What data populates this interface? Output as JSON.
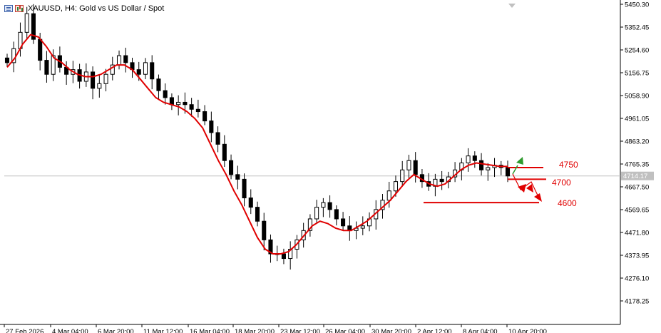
{
  "header": {
    "title": "XAUUSD, H4:  Gold vs US Dollar / Spot",
    "icons": [
      "list-icon",
      "bars-chart-icon"
    ]
  },
  "colors": {
    "up_candle": "#000000",
    "down_candle": "#000000",
    "ma_line": "#e00000",
    "annotation": "#e00000",
    "green_arrow": "#2e9b2e",
    "current_price_line": "#c0c0c0",
    "price_badge_bg": "#c0c0c0",
    "price_badge_text": "#ffffff"
  },
  "chart_data": {
    "type": "candlestick",
    "symbol": "XAUUSD",
    "timeframe": "H4",
    "title": "XAUUSD, H4:  Gold vs US Dollar / Spot",
    "ylim": [
      4100,
      5460
    ],
    "y_ticks": [
      "5450.30",
      "5352.45",
      "5254.60",
      "5156.75",
      "5058.90",
      "4961.05",
      "4863.20",
      "4765.35",
      "4667.50",
      "4569.65",
      "4471.80",
      "4373.95",
      "4276.10",
      "4178.25"
    ],
    "x_ticks": [
      "27 Feb 2026",
      "4 Mar 04:00",
      "6 Mar 20:00",
      "11 Mar 12:00",
      "16 Mar 04:00",
      "18 Mar 20:00",
      "23 Mar 12:00",
      "26 Mar 04:00",
      "30 Mar 20:00",
      "2 Apr 12:00",
      "8 Apr 04:00",
      "10 Apr 20:00"
    ],
    "current_price": 4714.17,
    "current_price_label": "4714.17",
    "grid": false,
    "close_series_approx": [
      5200,
      5260,
      5330,
      5410,
      5300,
      5210,
      5150,
      5230,
      5180,
      5150,
      5170,
      5120,
      5160,
      5090,
      5110,
      5150,
      5190,
      5230,
      5200,
      5170,
      5150,
      5200,
      5130,
      5080,
      5050,
      5020,
      5030,
      5020,
      5000,
      4990,
      4950,
      4900,
      4850,
      4780,
      4720,
      4700,
      4620,
      4580,
      4520,
      4440,
      4380,
      4380,
      4360,
      4400,
      4440,
      4480,
      4530,
      4580,
      4600,
      4570,
      4530,
      4500,
      4480,
      4490,
      4500,
      4530,
      4570,
      4610,
      4650,
      4690,
      4740,
      4780,
      4720,
      4690,
      4670,
      4700,
      4690,
      4710,
      4740,
      4770,
      4800,
      4780,
      4740,
      4750,
      4760,
      4750,
      4714
    ],
    "moving_average": {
      "name": "",
      "values": [
        5180,
        5220,
        5280,
        5320,
        5310,
        5270,
        5220,
        5200,
        5170,
        5150,
        5140,
        5140,
        5150,
        5170,
        5190,
        5190,
        5170,
        5130,
        5090,
        5050,
        5030,
        5020,
        5010,
        4990,
        4960,
        4920,
        4850,
        4780,
        4720,
        4650,
        4590,
        4520,
        4450,
        4400,
        4380,
        4380,
        4390,
        4420,
        4460,
        4500,
        4520,
        4510,
        4490,
        4480,
        4480,
        4500,
        4520,
        4550,
        4580,
        4610,
        4650,
        4690,
        4720,
        4700,
        4680,
        4670,
        4680,
        4710,
        4740,
        4760,
        4770,
        4765,
        4760,
        4755,
        4755
      ]
    },
    "horizontal_levels": [
      {
        "label": "4750",
        "price": 4750
      },
      {
        "label": "4700",
        "price": 4700
      },
      {
        "label": "4600",
        "price": 4600
      }
    ]
  }
}
